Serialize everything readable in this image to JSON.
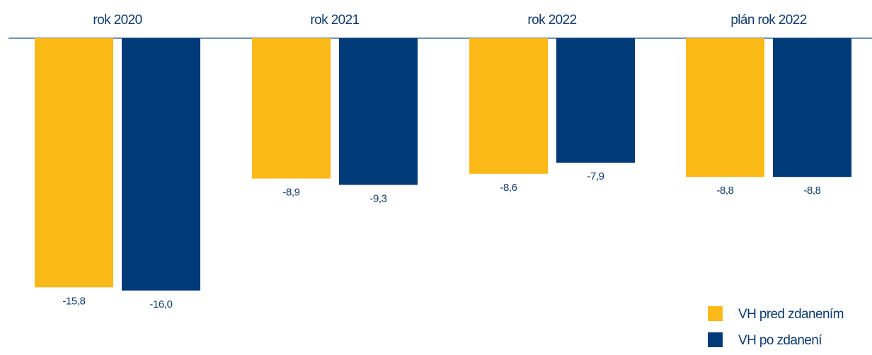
{
  "chart_data": {
    "type": "bar",
    "categories": [
      "rok 2020",
      "rok 2021",
      "rok 2022",
      "plán rok 2022"
    ],
    "series": [
      {
        "name": "VH pred zdanením",
        "color": "#FBB917",
        "values": [
          -15.8,
          -8.9,
          -8.6,
          -8.8
        ],
        "labels": [
          "-15,8",
          "-8,9",
          "-8,6",
          "-8,8"
        ]
      },
      {
        "name": "VH po zdanení",
        "color": "#003A78",
        "values": [
          -16.0,
          -9.3,
          -7.9,
          -8.8
        ],
        "labels": [
          "-16,0",
          "-9,3",
          "-7,9",
          "-8,8"
        ]
      }
    ],
    "ylim": [
      -16.0,
      0
    ],
    "grid": false,
    "axis_color": "#1F4E8C",
    "text_color": "#0F3A6E",
    "legend": {
      "position": "bottom-right"
    }
  }
}
